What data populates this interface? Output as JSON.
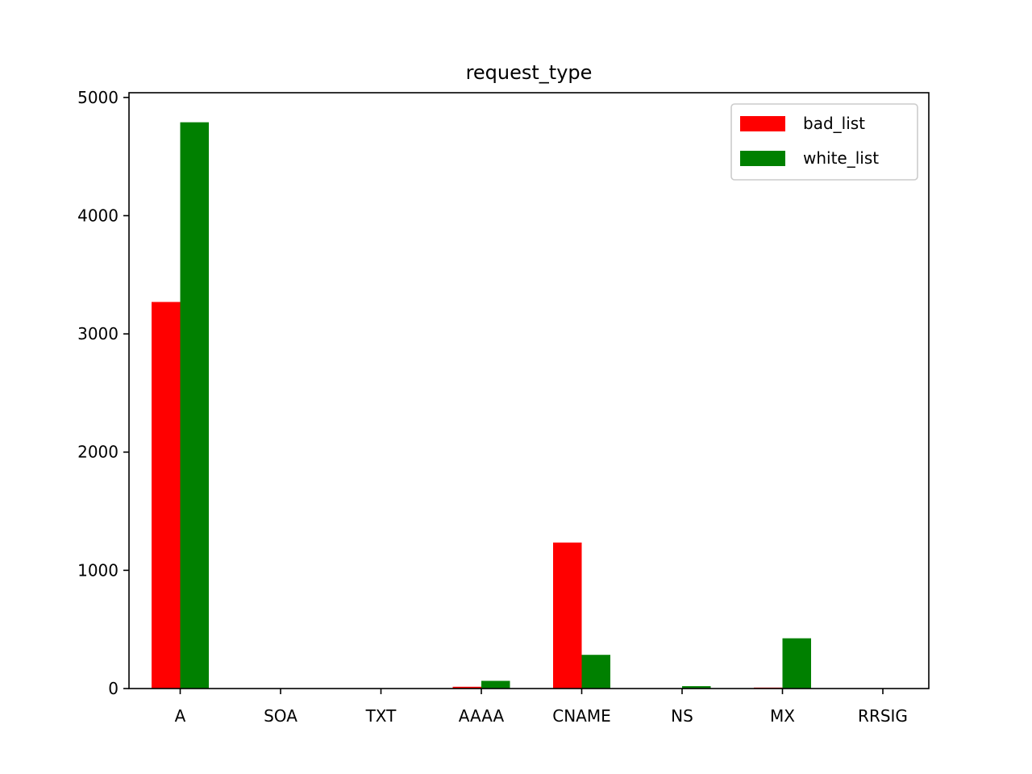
{
  "chart_data": {
    "type": "bar",
    "title": "request_type",
    "xlabel": "",
    "ylabel": "",
    "categories": [
      "A",
      "SOA",
      "TXT",
      "AAAA",
      "CNAME",
      "NS",
      "MX",
      "RRSIG"
    ],
    "series": [
      {
        "name": "bad_list",
        "color": "#ff0000",
        "values": [
          3270,
          0,
          0,
          15,
          1235,
          0,
          8,
          0
        ]
      },
      {
        "name": "white_list",
        "color": "#008000",
        "values": [
          4790,
          0,
          0,
          65,
          285,
          20,
          425,
          0
        ]
      }
    ],
    "ylim": [
      0,
      5040
    ],
    "yticks": [
      0,
      1000,
      2000,
      3000,
      4000,
      5000
    ],
    "ytick_labels": [
      "0",
      "1000",
      "2000",
      "3000",
      "4000",
      "5000"
    ],
    "grid": false,
    "legend_position": "top-right"
  }
}
